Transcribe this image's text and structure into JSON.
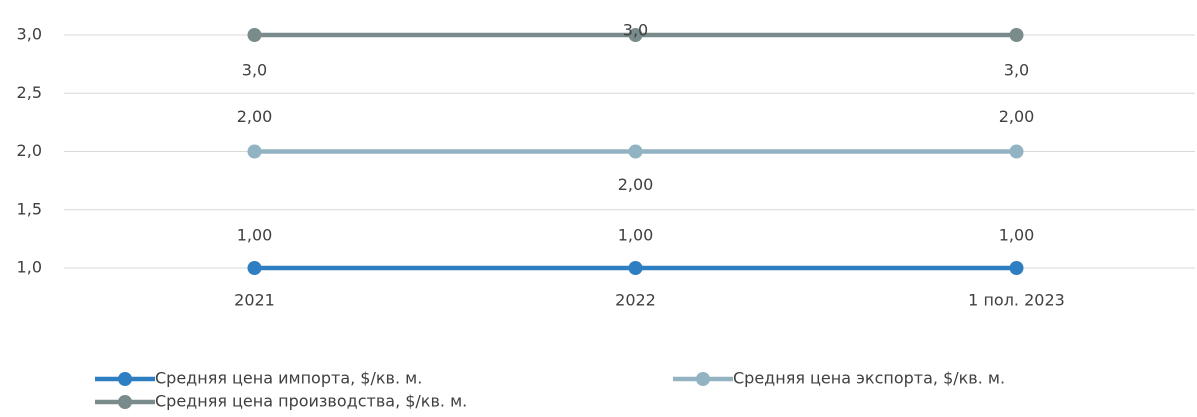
{
  "chart_data": {
    "type": "line",
    "categories": [
      "2021",
      "2022",
      "1 пол. 2023"
    ],
    "series": [
      {
        "name": "Средняя цена импорта, $/кв. м.",
        "color": "#2e7fc2",
        "values": [
          1,
          1,
          1
        ],
        "value_labels": [
          "1,00",
          "1,00",
          "1,00"
        ]
      },
      {
        "name": "Средняя цена экспорта, $/кв. м.",
        "color": "#92b4c2",
        "values": [
          2,
          2,
          2
        ],
        "value_labels": [
          "2,00",
          "2,00",
          "2,00"
        ]
      },
      {
        "name": "Средняя цена производства, $/кв. м.",
        "color": "#7a8b8b",
        "values": [
          3,
          3,
          3
        ],
        "value_labels": [
          "3,0",
          "3,0",
          "3,0"
        ]
      }
    ],
    "ylim": [
      1,
      3
    ],
    "yticks": [
      {
        "value": 1,
        "label": "1,0"
      },
      {
        "value": 1.5,
        "label": "1,5"
      },
      {
        "value": 2,
        "label": "2,0"
      },
      {
        "value": 2.5,
        "label": "2,5"
      },
      {
        "value": 3,
        "label": "3,0"
      }
    ],
    "grid": true
  }
}
